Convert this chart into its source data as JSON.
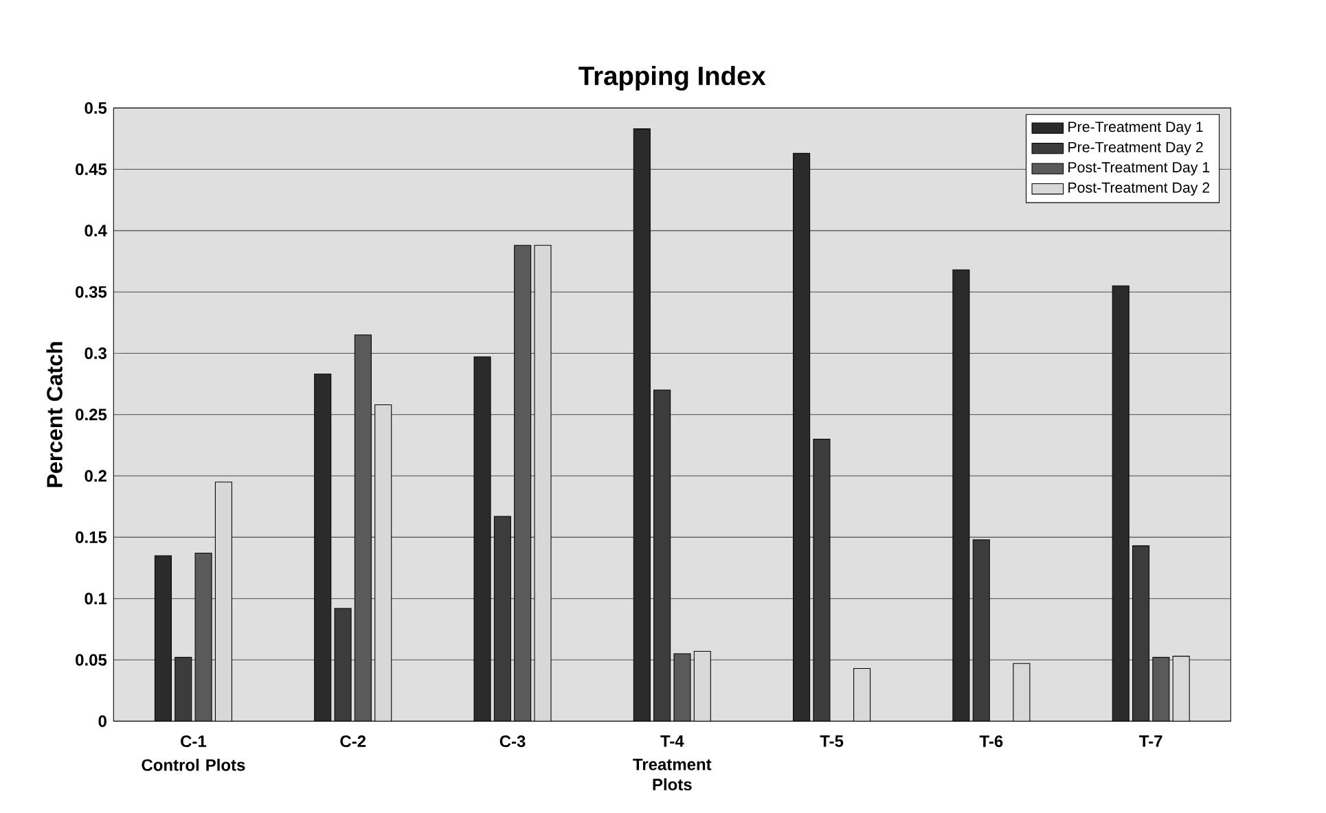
{
  "chart_data": {
    "type": "bar",
    "title": "Trapping Index",
    "ylabel": "Percent Catch",
    "categories": [
      "C-1",
      "C-2",
      "C-3",
      "T-4",
      "T-5",
      "T-6",
      "T-7"
    ],
    "series": [
      {
        "name": "Pre-Treatment Day 1",
        "color": "#2b2b2b",
        "values": [
          0.135,
          0.283,
          0.297,
          0.483,
          0.463,
          0.368,
          0.355
        ]
      },
      {
        "name": "Pre-Treatment Day 2",
        "color": "#3c3c3c",
        "values": [
          0.052,
          0.092,
          0.167,
          0.27,
          0.23,
          0.148,
          0.143
        ]
      },
      {
        "name": "Post-Treatment Day 1",
        "color": "#5a5a5a",
        "values": [
          0.137,
          0.315,
          0.388,
          0.055,
          null,
          null,
          0.052
        ]
      },
      {
        "name": "Post-Treatment Day 2",
        "color": "#d8d8d8",
        "values": [
          0.195,
          0.258,
          0.388,
          0.057,
          0.043,
          0.047,
          0.053
        ]
      }
    ],
    "annotations": [
      "Control Plots",
      "Treatment Plots"
    ],
    "ylim": [
      0,
      0.5
    ],
    "yticks": [
      0,
      0.05,
      0.1,
      0.15,
      0.2,
      0.25,
      0.3,
      0.35,
      0.4,
      0.45,
      0.5
    ],
    "grid": "y",
    "legend": "top right"
  }
}
